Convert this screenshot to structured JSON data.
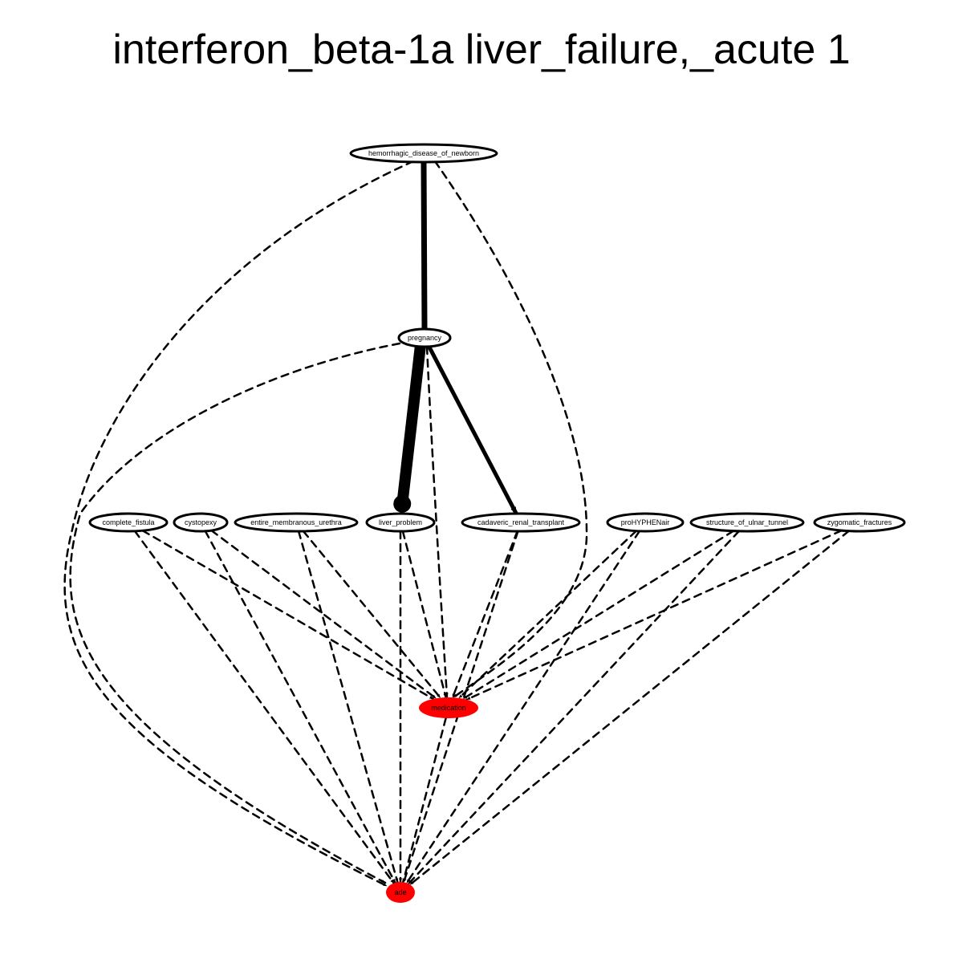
{
  "title": "interferon_beta-1a liver_failure,_acute 1",
  "colors": {
    "edge": "#000000",
    "highlight": "#ff0000",
    "background": "#ffffff"
  },
  "nodes": [
    {
      "id": "hemorrhagic_disease_of_newborn",
      "label": "hemorrhagic_disease_of_newborn",
      "fill": "#ffffff"
    },
    {
      "id": "pregnancy",
      "label": "pregnancy",
      "fill": "#ffffff"
    },
    {
      "id": "complete_fistula",
      "label": "complete_fistula",
      "fill": "#ffffff"
    },
    {
      "id": "cystopexy",
      "label": "cystopexy",
      "fill": "#ffffff"
    },
    {
      "id": "entire_membranous_urethra",
      "label": "entire_membranous_urethra",
      "fill": "#ffffff"
    },
    {
      "id": "liver_problem",
      "label": "liver_problem",
      "fill": "#ffffff"
    },
    {
      "id": "cadaveric_renal_transplant",
      "label": "cadaveric_renal_transplant",
      "fill": "#ffffff"
    },
    {
      "id": "proHYPHENair",
      "label": "proHYPHENair",
      "fill": "#ffffff"
    },
    {
      "id": "structure_of_ulnar_tunnel",
      "label": "structure_of_ulnar_tunnel",
      "fill": "#ffffff"
    },
    {
      "id": "zygomatic_fractures",
      "label": "zygomatic_fractures",
      "fill": "#ffffff"
    },
    {
      "id": "medication",
      "label": "medication",
      "fill": "#ff0000"
    },
    {
      "id": "ade",
      "label": "ade",
      "fill": "#ff0000"
    }
  ],
  "edges": [
    {
      "from": "hemorrhagic_disease_of_newborn",
      "to": "pregnancy",
      "style": "solid",
      "weight": 4
    },
    {
      "from": "pregnancy",
      "to": "liver_problem",
      "style": "solid",
      "weight": 10
    },
    {
      "from": "pregnancy",
      "to": "cadaveric_renal_transplant",
      "style": "solid",
      "weight": 3
    },
    {
      "from": "hemorrhagic_disease_of_newborn",
      "to": "medication",
      "style": "dashed",
      "weight": 1
    },
    {
      "from": "hemorrhagic_disease_of_newborn",
      "to": "ade",
      "style": "dashed",
      "weight": 1
    },
    {
      "from": "pregnancy",
      "to": "medication",
      "style": "dashed",
      "weight": 1
    },
    {
      "from": "pregnancy",
      "to": "ade",
      "style": "dashed",
      "weight": 1
    },
    {
      "from": "complete_fistula",
      "to": "medication",
      "style": "dashed",
      "weight": 1
    },
    {
      "from": "complete_fistula",
      "to": "ade",
      "style": "dashed",
      "weight": 1
    },
    {
      "from": "cystopexy",
      "to": "medication",
      "style": "dashed",
      "weight": 1
    },
    {
      "from": "cystopexy",
      "to": "ade",
      "style": "dashed",
      "weight": 1
    },
    {
      "from": "entire_membranous_urethra",
      "to": "medication",
      "style": "dashed",
      "weight": 1
    },
    {
      "from": "entire_membranous_urethra",
      "to": "ade",
      "style": "dashed",
      "weight": 1
    },
    {
      "from": "liver_problem",
      "to": "medication",
      "style": "dashed",
      "weight": 1
    },
    {
      "from": "liver_problem",
      "to": "ade",
      "style": "dashed",
      "weight": 1
    },
    {
      "from": "cadaveric_renal_transplant",
      "to": "medication",
      "style": "dashed",
      "weight": 1
    },
    {
      "from": "cadaveric_renal_transplant",
      "to": "ade",
      "style": "dashed",
      "weight": 1
    },
    {
      "from": "proHYPHENair",
      "to": "medication",
      "style": "dashed",
      "weight": 1
    },
    {
      "from": "proHYPHENair",
      "to": "ade",
      "style": "dashed",
      "weight": 1
    },
    {
      "from": "structure_of_ulnar_tunnel",
      "to": "medication",
      "style": "dashed",
      "weight": 1
    },
    {
      "from": "structure_of_ulnar_tunnel",
      "to": "ade",
      "style": "dashed",
      "weight": 1
    },
    {
      "from": "zygomatic_fractures",
      "to": "medication",
      "style": "dashed",
      "weight": 1
    },
    {
      "from": "zygomatic_fractures",
      "to": "ade",
      "style": "dashed",
      "weight": 1
    },
    {
      "from": "medication",
      "to": "ade",
      "style": "dashed",
      "weight": 1
    }
  ]
}
